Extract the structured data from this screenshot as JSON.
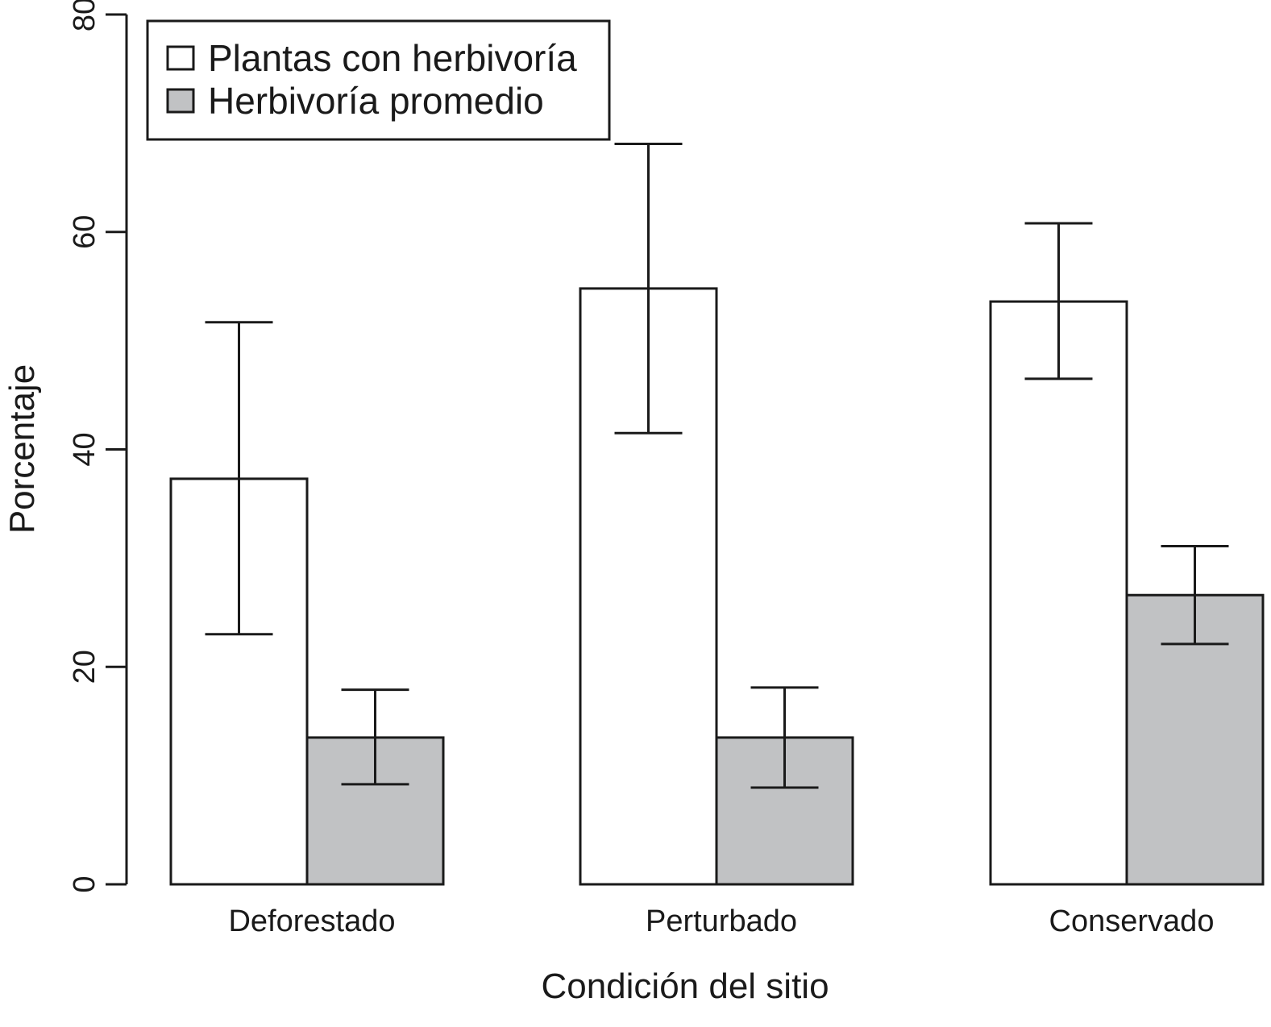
{
  "chart_data": {
    "type": "bar",
    "title": "",
    "xlabel": "Condición del sitio",
    "ylabel": "Porcentaje",
    "ylim": [
      0,
      80
    ],
    "yticks": [
      "0",
      "20",
      "40",
      "60",
      "80"
    ],
    "grid": false,
    "legend_position": "top-left",
    "categories": [
      "Deforestado",
      "Perturbado",
      "Conservado"
    ],
    "series": [
      {
        "name": "Plantas con herbivoría",
        "color": "#ffffff",
        "values": [
          37.3,
          54.8,
          53.6
        ],
        "error_low": [
          23.0,
          41.5,
          46.5
        ],
        "error_high": [
          51.7,
          68.1,
          60.8
        ]
      },
      {
        "name": "Herbivoría promedio",
        "color": "#c1c2c4",
        "values": [
          13.5,
          13.5,
          26.6
        ],
        "error_low": [
          9.2,
          8.9,
          22.1
        ],
        "error_high": [
          17.9,
          18.1,
          31.1
        ]
      }
    ]
  }
}
